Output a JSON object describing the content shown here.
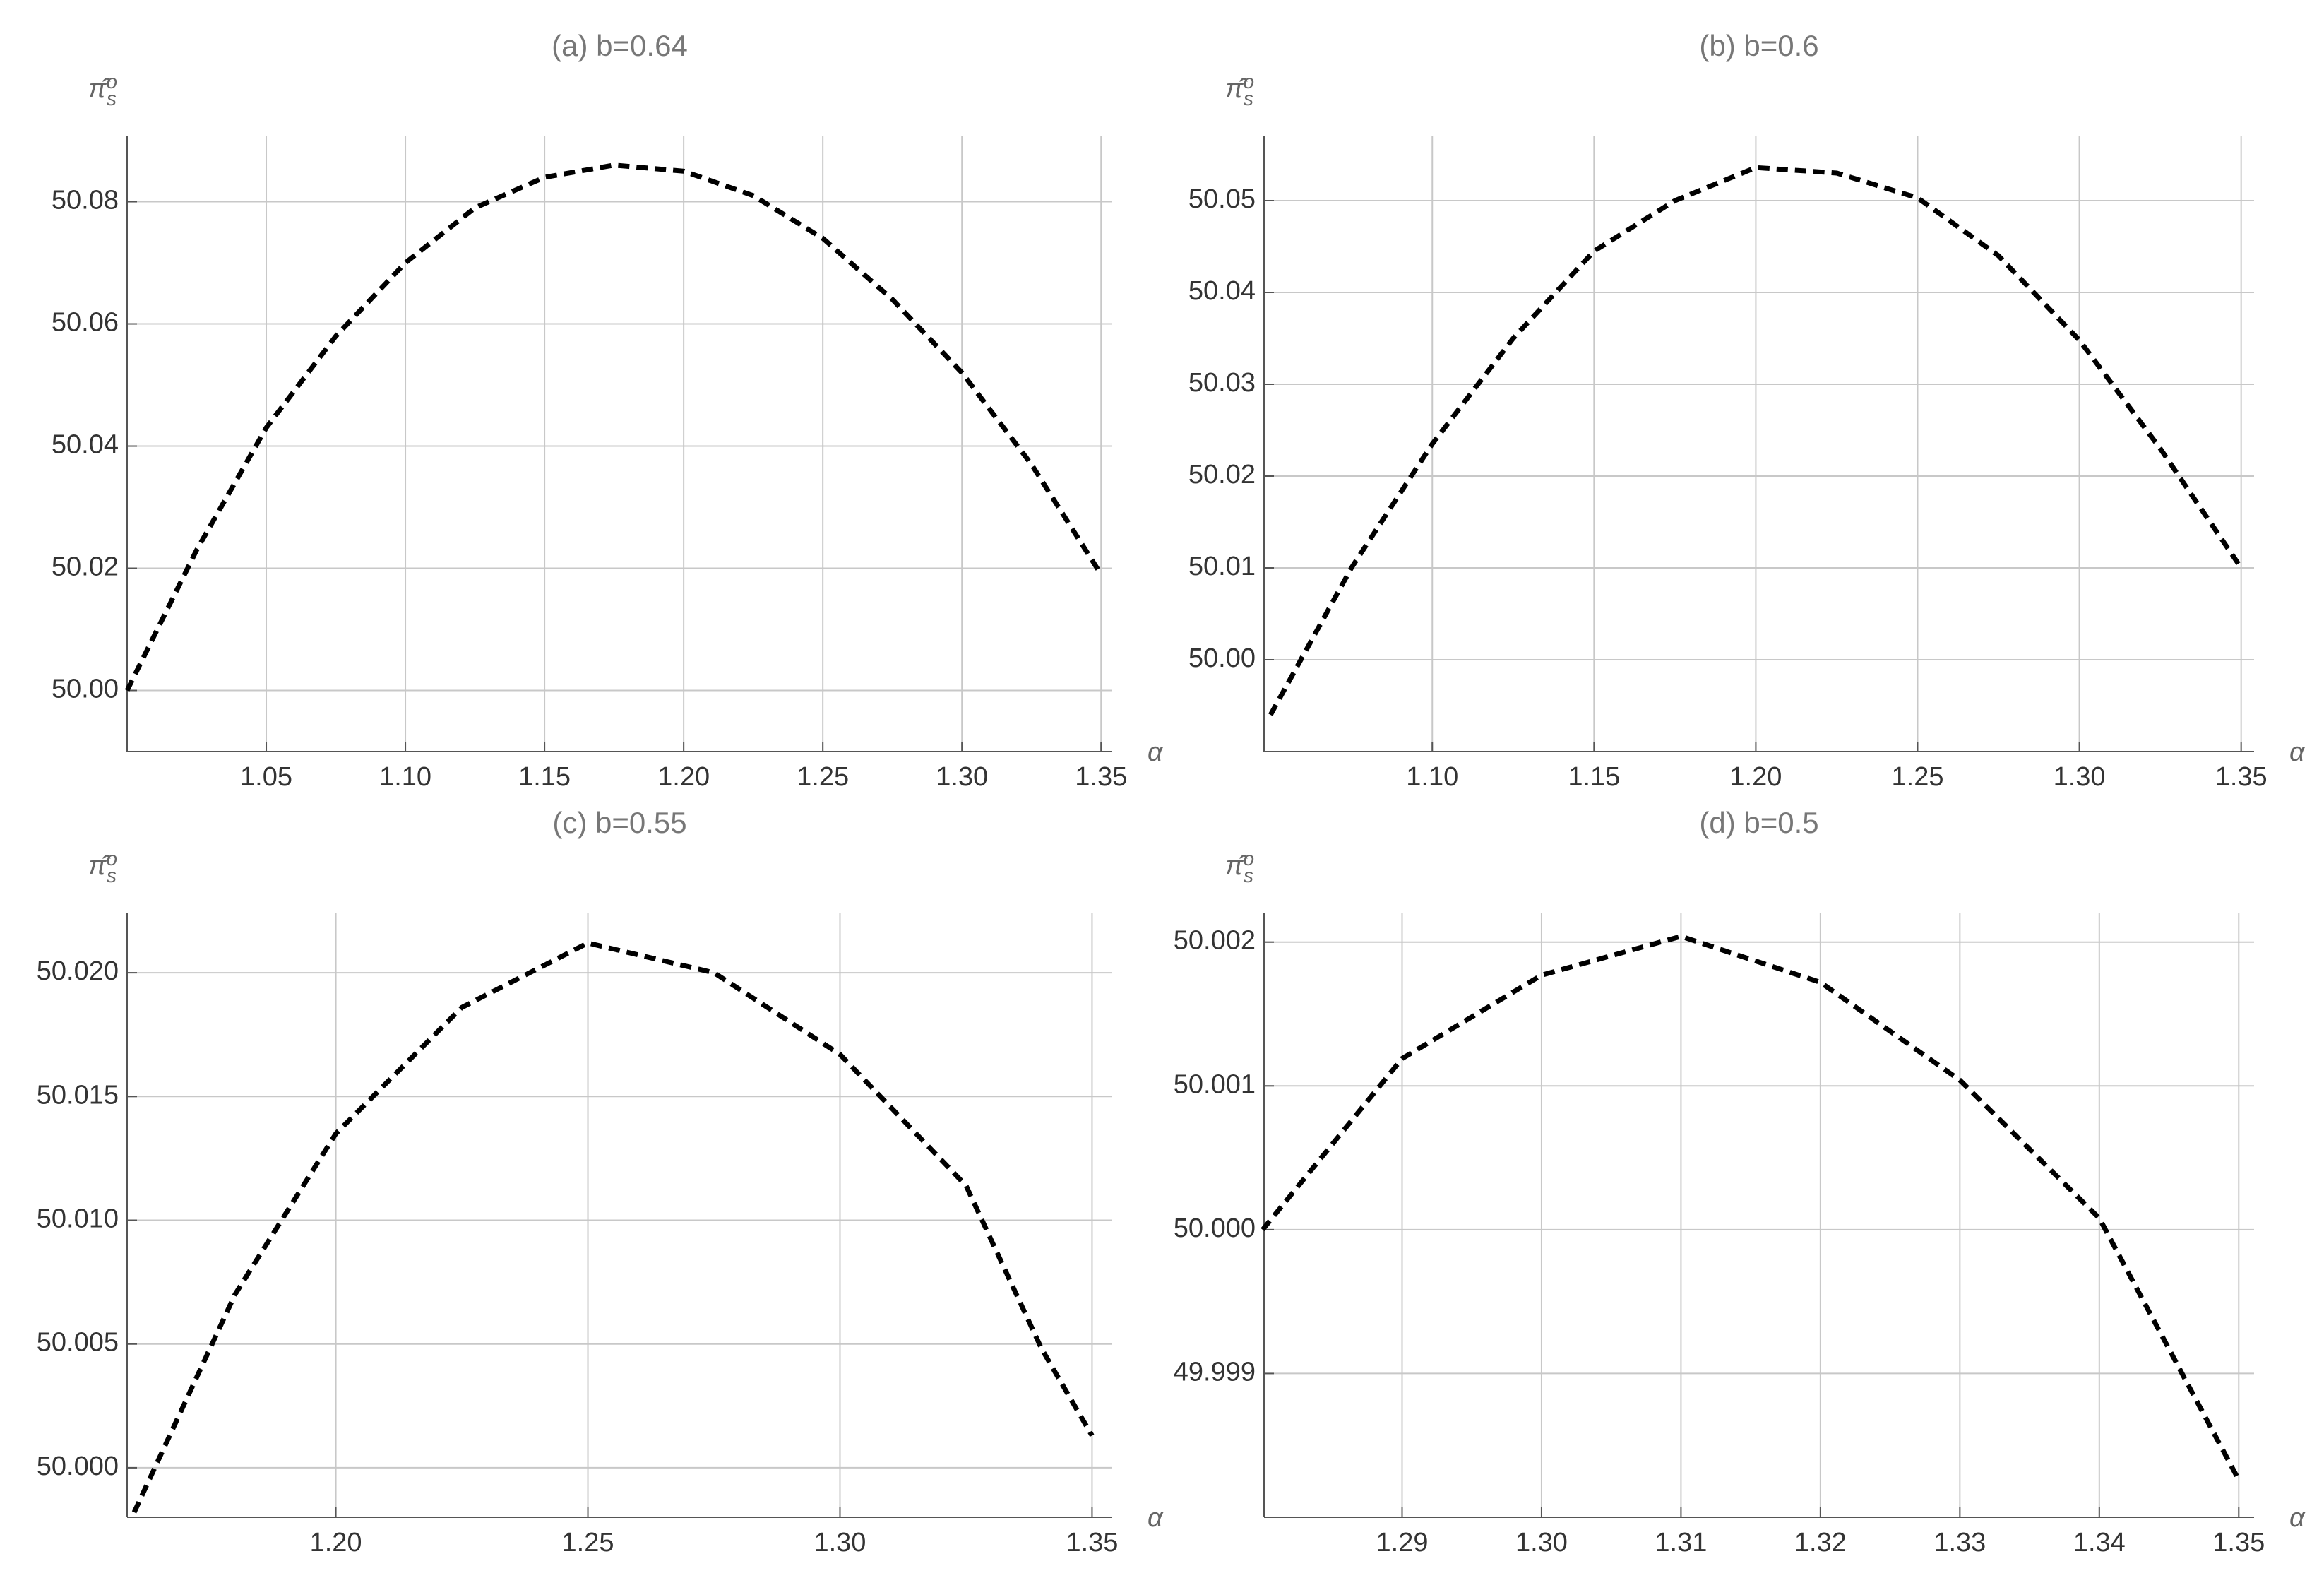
{
  "chart_data": [
    {
      "type": "line",
      "title": "(a) b=0.64",
      "ylabel_symbol": "π̂",
      "ylabel_sub": "s",
      "ylabel_sup": "o",
      "xlabel": "α",
      "x": [
        1.0,
        1.025,
        1.05,
        1.075,
        1.1,
        1.125,
        1.15,
        1.175,
        1.2,
        1.225,
        1.25,
        1.275,
        1.3,
        1.325,
        1.35
      ],
      "values": [
        50.0,
        50.023,
        50.043,
        50.058,
        50.07,
        50.079,
        50.084,
        50.086,
        50.085,
        50.081,
        50.074,
        50.064,
        50.052,
        50.037,
        50.019
      ],
      "color": "#000000",
      "xlim": [
        1.0,
        1.354
      ],
      "ylim": [
        49.99,
        50.0907
      ],
      "xticks": [
        1.05,
        {
          "value": 1.1,
          "label": "1.10"
        },
        1.15,
        {
          "value": 1.2,
          "label": "1.20"
        },
        1.25,
        {
          "value": 1.3,
          "label": "1.30"
        },
        1.35
      ],
      "yticks": [
        {
          "value": 50,
          "label": "50.00"
        },
        50.02,
        50.04,
        50.06,
        50.08
      ],
      "grid": true
    },
    {
      "type": "line",
      "title": "(b) b=0.6",
      "ylabel_symbol": "π̂",
      "ylabel_sub": "s",
      "ylabel_sup": "o",
      "xlabel": "α",
      "x": [
        1.05,
        1.075,
        1.1,
        1.125,
        1.15,
        1.175,
        1.2,
        1.225,
        1.25,
        1.275,
        1.3,
        1.325,
        1.35
      ],
      "values": [
        49.994,
        50.01,
        50.0235,
        50.035,
        50.0445,
        50.05,
        50.0536,
        50.053,
        50.0503,
        50.044,
        50.0348,
        50.023,
        50.01
      ],
      "color": "#000000",
      "xlim": [
        1.048,
        1.354
      ],
      "ylim": [
        49.99,
        50.057
      ],
      "xticks": [
        {
          "value": 1.1,
          "label": "1.10"
        },
        1.15,
        {
          "value": 1.2,
          "label": "1.20"
        },
        1.25,
        {
          "value": 1.3,
          "label": "1.30"
        },
        1.35
      ],
      "yticks": [
        {
          "value": 50,
          "label": "50.00"
        },
        50.01,
        50.02,
        50.03,
        50.04,
        50.05
      ],
      "grid": true
    },
    {
      "type": "line",
      "title": "(c) b=0.55",
      "ylabel_symbol": "π̂",
      "ylabel_sub": "s",
      "ylabel_sup": "o",
      "xlabel": "α",
      "x": [
        1.16,
        1.18,
        1.2,
        1.225,
        1.25,
        1.275,
        1.3,
        1.325,
        1.34,
        1.35
      ],
      "values": [
        49.9982,
        50.007,
        50.0135,
        50.0186,
        50.0212,
        50.02,
        50.0167,
        50.0114,
        50.0048,
        50.0013
      ],
      "color": "#000000",
      "xlim": [
        1.1586,
        1.354
      ],
      "ylim": [
        49.998,
        50.0224
      ],
      "xticks": [
        {
          "value": 1.2,
          "label": "1.20"
        },
        1.25,
        {
          "value": 1.3,
          "label": "1.30"
        },
        1.35
      ],
      "yticks": [
        {
          "value": 50,
          "label": "50.000"
        },
        50.005,
        {
          "value": 50.01,
          "label": "50.010"
        },
        50.015,
        {
          "value": 50.02,
          "label": "50.020"
        }
      ],
      "grid": true
    },
    {
      "type": "line",
      "title": "(d) b=0.5",
      "ylabel_symbol": "π̂",
      "ylabel_sub": "s",
      "ylabel_sup": "o",
      "xlabel": "α",
      "x": [
        1.28,
        1.29,
        1.3,
        1.31,
        1.32,
        1.33,
        1.34,
        1.35
      ],
      "values": [
        50.0,
        50.00119,
        50.00177,
        50.00204,
        50.00172,
        50.00104,
        50.00008,
        49.99826
      ],
      "color": "#000000",
      "xlim": [
        1.2801,
        1.3511
      ],
      "ylim": [
        49.998,
        50.0022
      ],
      "xticks": [
        1.29,
        {
          "value": 1.3,
          "label": "1.30"
        },
        1.31,
        1.32,
        1.33,
        1.34,
        1.35
      ],
      "yticks": [
        49.999,
        {
          "value": 50,
          "label": "50.000"
        },
        50.001,
        50.002
      ],
      "grid": true
    }
  ]
}
